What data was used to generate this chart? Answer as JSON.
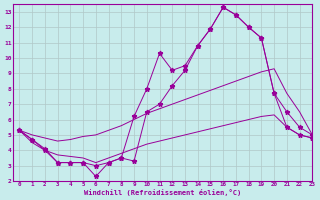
{
  "xlabel": "Windchill (Refroidissement éolien,°C)",
  "background_color": "#c8ecec",
  "line_color": "#990099",
  "xlim": [
    -0.5,
    23
  ],
  "ylim": [
    2,
    13.5
  ],
  "xticks": [
    0,
    1,
    2,
    3,
    4,
    5,
    6,
    7,
    8,
    9,
    10,
    11,
    12,
    13,
    14,
    15,
    16,
    17,
    18,
    19,
    20,
    21,
    22,
    23
  ],
  "yticks": [
    2,
    3,
    4,
    5,
    6,
    7,
    8,
    9,
    10,
    11,
    12,
    13
  ],
  "grid_color": "#b0c8c8",
  "series": [
    {
      "x": [
        0,
        1,
        2,
        3,
        4,
        5,
        6,
        7,
        8,
        9,
        10,
        11,
        12,
        13,
        14,
        15,
        16,
        17,
        18,
        19,
        20,
        21,
        22,
        23
      ],
      "y": [
        5.3,
        4.7,
        4.1,
        3.2,
        3.2,
        3.2,
        2.3,
        3.2,
        3.5,
        6.2,
        8.0,
        10.3,
        9.2,
        9.5,
        10.8,
        11.9,
        13.3,
        12.8,
        12.0,
        11.3,
        7.7,
        5.5,
        5.0,
        4.8
      ],
      "marker": true
    },
    {
      "x": [
        0,
        1,
        2,
        3,
        4,
        5,
        6,
        7,
        8,
        9,
        10,
        11,
        12,
        13,
        14,
        15,
        16,
        17,
        18,
        19,
        20,
        21,
        22,
        23
      ],
      "y": [
        5.3,
        4.7,
        4.0,
        3.2,
        3.2,
        3.2,
        3.0,
        3.2,
        3.5,
        3.3,
        6.5,
        7.0,
        8.2,
        9.2,
        10.8,
        11.9,
        13.3,
        12.8,
        12.0,
        11.3,
        7.7,
        6.5,
        5.5,
        5.0
      ],
      "marker": true
    },
    {
      "x": [
        0,
        1,
        2,
        3,
        4,
        5,
        6,
        7,
        8,
        9,
        10,
        11,
        12,
        13,
        14,
        15,
        16,
        17,
        18,
        19,
        20,
        21,
        22,
        23
      ],
      "y": [
        5.3,
        5.0,
        4.8,
        4.6,
        4.7,
        4.9,
        5.0,
        5.3,
        5.6,
        6.0,
        6.4,
        6.7,
        7.0,
        7.3,
        7.6,
        7.9,
        8.2,
        8.5,
        8.8,
        9.1,
        9.3,
        7.7,
        6.5,
        5.0
      ],
      "marker": false
    },
    {
      "x": [
        0,
        1,
        2,
        3,
        4,
        5,
        6,
        7,
        8,
        9,
        10,
        11,
        12,
        13,
        14,
        15,
        16,
        17,
        18,
        19,
        20,
        21,
        22,
        23
      ],
      "y": [
        5.3,
        4.5,
        4.0,
        3.7,
        3.6,
        3.5,
        3.2,
        3.5,
        3.8,
        4.1,
        4.4,
        4.6,
        4.8,
        5.0,
        5.2,
        5.4,
        5.6,
        5.8,
        6.0,
        6.2,
        6.3,
        5.5,
        5.0,
        4.8
      ],
      "marker": false
    }
  ]
}
